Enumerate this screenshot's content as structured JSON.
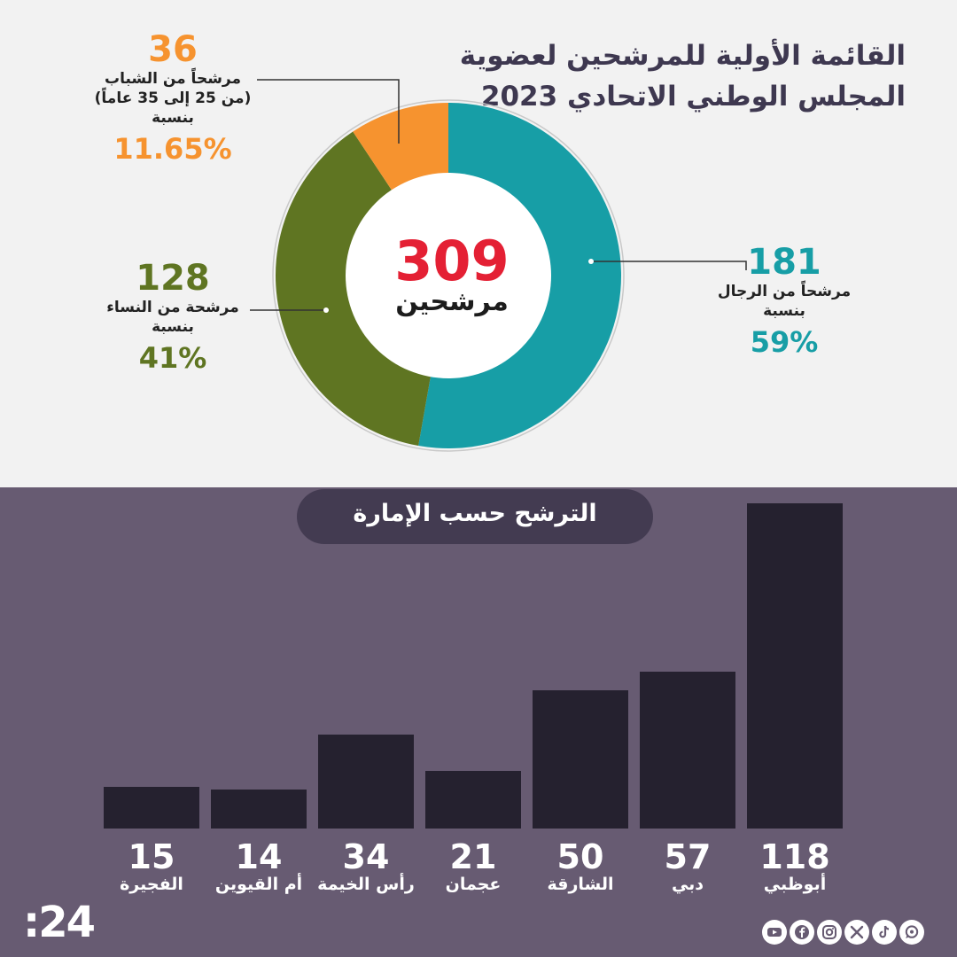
{
  "title_line1": "القائمة الأولية للمرشحين لعضوية",
  "title_line2": "المجلس الوطني الاتحادي 2023",
  "total": {
    "value": "309",
    "label": "مرشحين"
  },
  "segments": {
    "men": {
      "count": "181",
      "line1": "مرشحاً من الرجال",
      "line2": "بنسبة",
      "percent": "59%",
      "color": "#179ea6"
    },
    "women": {
      "count": "128",
      "line1": "مرشحة من النساء",
      "line2": "بنسبة",
      "percent": "41%",
      "color": "#5f7522"
    },
    "youth": {
      "count": "36",
      "line1": "مرشحاً من الشباب",
      "line2": "(من 25 إلى 35 عاماً)",
      "line3": "بنسبة",
      "percent": "11.65%",
      "color": "#f6932f"
    }
  },
  "bars_title": "الترشح حسب الإمارة",
  "chart_data": [
    {
      "type": "pie",
      "labels": [
        "مرشحاً من الرجال",
        "مرشحة من النساء",
        "مرشحاً من الشباب"
      ],
      "values": [
        181,
        128,
        36
      ],
      "percent": [
        59,
        41,
        11.65
      ],
      "total": 309,
      "colors": [
        "#179ea6",
        "#5f7522",
        "#f6932f"
      ]
    },
    {
      "type": "bar",
      "title": "الترشح حسب الإمارة",
      "categories": [
        "الفجيرة",
        "أم القيوين",
        "رأس الخيمة",
        "عجمان",
        "الشارقة",
        "دبي",
        "أبوظبي"
      ],
      "values": [
        15,
        14,
        34,
        21,
        50,
        57,
        118
      ],
      "ylim": [
        0,
        118
      ],
      "grid": false,
      "bar_color": "#25212f"
    }
  ],
  "brand": {
    "logo_text": ":24"
  },
  "socials": [
    "youtube-icon",
    "facebook-icon",
    "instagram-icon",
    "x-icon",
    "tiktok-icon",
    "whatsapp-icon"
  ]
}
